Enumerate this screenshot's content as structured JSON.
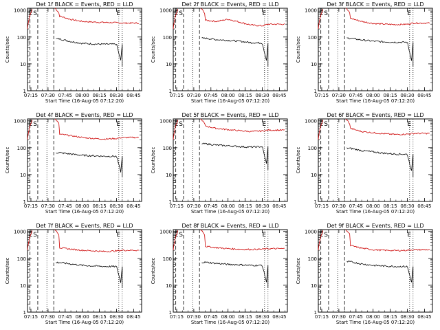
{
  "figure": {
    "xlabel": "Start Time (16-Aug-05 07:12:20)",
    "ylabel": "Counts/sec",
    "x_tick_labels": [
      "07:15",
      "07:30",
      "07:45",
      "08:00",
      "08:15",
      "08:30",
      "08:45"
    ],
    "y_tick_labels": [
      "1",
      "10",
      "100",
      "1000"
    ],
    "event_markers": [
      "E",
      "S",
      "E"
    ],
    "colors": {
      "events": "#000000",
      "lld": "#cc0000",
      "axes": "#000000"
    }
  },
  "chart_data": [
    {
      "type": "line",
      "title": "Det 1f BLACK = Events, RED = LLD",
      "x": [
        "07:40",
        "07:50",
        "08:00",
        "08:10",
        "08:20",
        "08:30",
        "08:35"
      ],
      "ylim": [
        1,
        1000
      ],
      "log_y": true,
      "series": [
        {
          "name": "Events",
          "color": "#000000",
          "values": [
            85,
            68,
            58,
            55,
            54,
            54,
            8
          ]
        },
        {
          "name": "LLD",
          "color": "#cc0000",
          "values": [
            600,
            450,
            380,
            360,
            350,
            340,
            330
          ]
        }
      ]
    },
    {
      "type": "line",
      "title": "Det 2f BLACK = Events, RED = LLD",
      "x": [
        "07:40",
        "07:50",
        "08:00",
        "08:10",
        "08:20",
        "08:30",
        "08:35"
      ],
      "ylim": [
        1,
        1000
      ],
      "log_y": true,
      "series": [
        {
          "name": "Events",
          "color": "#000000",
          "values": [
            90,
            80,
            75,
            70,
            62,
            60,
            8
          ]
        },
        {
          "name": "LLD",
          "color": "#cc0000",
          "values": [
            420,
            380,
            460,
            360,
            280,
            260,
            300
          ]
        }
      ]
    },
    {
      "type": "line",
      "title": "Det 3f BLACK = Events, RED = LLD",
      "x": [
        "07:40",
        "07:50",
        "08:00",
        "08:10",
        "08:20",
        "08:30",
        "08:35"
      ],
      "ylim": [
        1,
        1000
      ],
      "log_y": true,
      "series": [
        {
          "name": "Events",
          "color": "#000000",
          "values": [
            90,
            78,
            70,
            66,
            64,
            64,
            8
          ]
        },
        {
          "name": "LLD",
          "color": "#cc0000",
          "values": [
            500,
            380,
            320,
            300,
            290,
            300,
            330
          ]
        }
      ]
    },
    {
      "type": "line",
      "title": "Det 4f BLACK = Events, RED = LLD",
      "x": [
        "07:40",
        "07:50",
        "08:00",
        "08:10",
        "08:20",
        "08:30",
        "08:35"
      ],
      "ylim": [
        1,
        1000
      ],
      "log_y": true,
      "series": [
        {
          "name": "Events",
          "color": "#000000",
          "values": [
            65,
            58,
            52,
            50,
            48,
            48,
            8
          ]
        },
        {
          "name": "LLD",
          "color": "#cc0000",
          "values": [
            320,
            280,
            240,
            220,
            210,
            220,
            240
          ]
        }
      ]
    },
    {
      "type": "line",
      "title": "Det 5f BLACK = Events, RED = LLD",
      "x": [
        "07:40",
        "07:50",
        "08:00",
        "08:10",
        "08:20",
        "08:30",
        "08:35"
      ],
      "ylim": [
        1,
        1000
      ],
      "log_y": true,
      "series": [
        {
          "name": "Events",
          "color": "#000000",
          "values": [
            140,
            125,
            118,
            110,
            105,
            110,
            15
          ]
        },
        {
          "name": "LLD",
          "color": "#cc0000",
          "values": [
            640,
            520,
            470,
            430,
            400,
            420,
            450
          ]
        }
      ]
    },
    {
      "type": "line",
      "title": "Det 6f BLACK = Events, RED = LLD",
      "x": [
        "07:40",
        "07:50",
        "08:00",
        "08:10",
        "08:20",
        "08:30",
        "08:35"
      ],
      "ylim": [
        1,
        1000
      ],
      "log_y": true,
      "series": [
        {
          "name": "Events",
          "color": "#000000",
          "values": [
            95,
            78,
            70,
            62,
            58,
            57,
            8
          ]
        },
        {
          "name": "LLD",
          "color": "#cc0000",
          "values": [
            520,
            400,
            360,
            330,
            310,
            320,
            340
          ]
        }
      ]
    },
    {
      "type": "line",
      "title": "Det 7f BLACK = Events, RED = LLD",
      "x": [
        "07:40",
        "07:50",
        "08:00",
        "08:10",
        "08:20",
        "08:30",
        "08:35"
      ],
      "ylim": [
        1,
        1000
      ],
      "log_y": true,
      "series": [
        {
          "name": "Events",
          "color": "#000000",
          "values": [
            70,
            62,
            55,
            52,
            50,
            50,
            8
          ]
        },
        {
          "name": "LLD",
          "color": "#cc0000",
          "values": [
            250,
            220,
            200,
            190,
            180,
            190,
            200
          ]
        }
      ]
    },
    {
      "type": "line",
      "title": "Det 8f BLACK = Events, RED = LLD",
      "x": [
        "07:40",
        "07:50",
        "08:00",
        "08:10",
        "08:20",
        "08:30",
        "08:35"
      ],
      "ylim": [
        1,
        1000
      ],
      "log_y": true,
      "series": [
        {
          "name": "Events",
          "color": "#000000",
          "values": [
            72,
            65,
            60,
            58,
            55,
            55,
            8
          ]
        },
        {
          "name": "LLD",
          "color": "#cc0000",
          "values": [
            280,
            250,
            230,
            220,
            215,
            220,
            230
          ]
        }
      ]
    },
    {
      "type": "line",
      "title": "Det 9f BLACK = Events, RED = LLD",
      "x": [
        "07:40",
        "07:50",
        "08:00",
        "08:10",
        "08:20",
        "08:30",
        "08:35"
      ],
      "ylim": [
        1,
        1000
      ],
      "log_y": true,
      "series": [
        {
          "name": "Events",
          "color": "#000000",
          "values": [
            75,
            62,
            55,
            52,
            50,
            50,
            8
          ]
        },
        {
          "name": "LLD",
          "color": "#cc0000",
          "values": [
            300,
            240,
            210,
            200,
            195,
            200,
            210
          ]
        }
      ]
    }
  ]
}
